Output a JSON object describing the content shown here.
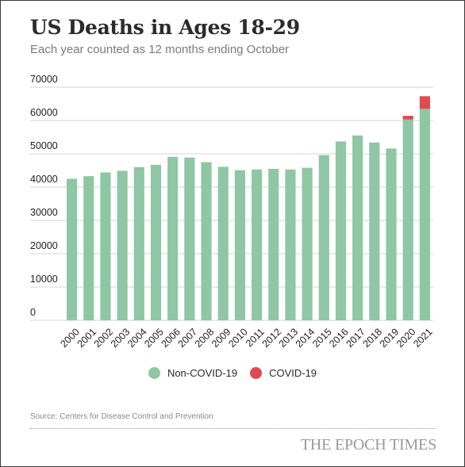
{
  "title": "US Deaths in Ages 18-29",
  "subtitle": "Each year counted as 12 months ending October",
  "source": "Source: Centers for Disease Control and Prevention",
  "brand": "THE EPOCH TIMES",
  "colors": {
    "non_covid": "#8fc6a4",
    "covid": "#de4a52",
    "grid": "#d6d6d6"
  },
  "chart_data": {
    "type": "bar",
    "stacked": true,
    "categories": [
      "2000",
      "2001",
      "2002",
      "2003",
      "2004",
      "2005",
      "2006",
      "2007",
      "2008",
      "2009",
      "2010",
      "2011",
      "2012",
      "2013",
      "2014",
      "2015",
      "2016",
      "2017",
      "2018",
      "2019",
      "2020",
      "2021"
    ],
    "series": [
      {
        "name": "Non-COVID-19",
        "color": "#8fc6a4",
        "values": [
          42500,
          43300,
          44400,
          44900,
          46000,
          46700,
          49100,
          48900,
          47500,
          46100,
          45100,
          45300,
          45500,
          45300,
          45800,
          49600,
          53700,
          55500,
          53400,
          51600,
          60300,
          63500
        ]
      },
      {
        "name": "COVID-19",
        "color": "#de4a52",
        "values": [
          0,
          0,
          0,
          0,
          0,
          0,
          0,
          0,
          0,
          0,
          0,
          0,
          0,
          0,
          0,
          0,
          0,
          0,
          0,
          0,
          1100,
          3800
        ]
      }
    ],
    "ylim": [
      0,
      70000
    ],
    "yticks": [
      "0",
      "10000",
      "20000",
      "30000",
      "40000",
      "50000",
      "60000",
      "70000"
    ],
    "grid": true,
    "legend": "bottom-center"
  }
}
